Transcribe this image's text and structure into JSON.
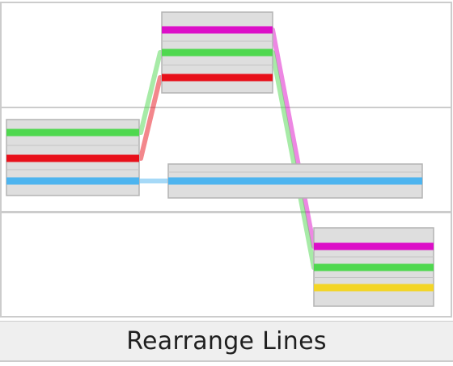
{
  "footer": {
    "button_label": "Rearrange Lines"
  },
  "palette": {
    "background": "#ffffff",
    "footer_background": "#efefef",
    "divider": "#cccccc",
    "block_fill": "#dedede",
    "block_stroke": "#b4b4b4",
    "slot_separator": "#c4c4c4"
  },
  "lines": [
    {
      "id": "magenta",
      "color": "#dc0fc8"
    },
    {
      "id": "green",
      "color": "#4fd84f"
    },
    {
      "id": "red",
      "color": "#e8101a"
    },
    {
      "id": "blue",
      "color": "#4db4ef"
    },
    {
      "id": "yellow",
      "color": "#f3d526"
    }
  ],
  "rows": [
    {
      "index": 0
    },
    {
      "index": 1
    },
    {
      "index": 2
    }
  ],
  "blocks": [
    {
      "id": "block-top",
      "row": 0,
      "slots": [
        "magenta",
        "green",
        "red"
      ]
    },
    {
      "id": "block-left",
      "row": 1,
      "slots": [
        "green",
        "red",
        "blue"
      ]
    },
    {
      "id": "block-middle",
      "row": 1,
      "slots": [
        "blue"
      ]
    },
    {
      "id": "block-bottom-right",
      "row": 2,
      "slots": [
        "magenta",
        "green",
        "yellow"
      ]
    }
  ],
  "connections": [
    {
      "line": "green",
      "from": "block-left",
      "to": "block-top"
    },
    {
      "line": "red",
      "from": "block-left",
      "to": "block-top"
    },
    {
      "line": "blue",
      "from": "block-left",
      "to": "block-middle"
    },
    {
      "line": "magenta",
      "from": "block-top",
      "to": "block-bottom-right"
    },
    {
      "line": "green",
      "from": "block-top",
      "to": "block-bottom-right"
    }
  ]
}
